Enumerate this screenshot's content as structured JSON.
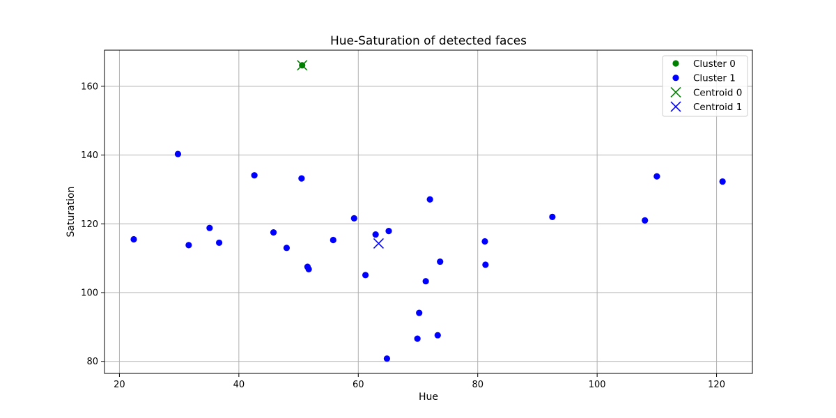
{
  "chart_data": {
    "type": "scatter",
    "title": "Hue-Saturation of detected faces",
    "xlabel": "Hue",
    "ylabel": "Saturation",
    "xlim": [
      17.5,
      126.0
    ],
    "ylim": [
      76.5,
      170.5
    ],
    "xticks": [
      20,
      40,
      60,
      80,
      100,
      120
    ],
    "yticks": [
      80,
      100,
      120,
      140,
      160
    ],
    "grid": true,
    "legend_position": "top-right",
    "series": [
      {
        "name": "Cluster 0",
        "marker": "circle",
        "color": "#008000",
        "points": [
          [
            50.6,
            166.1
          ]
        ]
      },
      {
        "name": "Cluster 1",
        "marker": "circle",
        "color": "#0000ff",
        "points": [
          [
            22.4,
            115.5
          ],
          [
            29.8,
            140.3
          ],
          [
            31.6,
            113.8
          ],
          [
            35.1,
            118.8
          ],
          [
            36.7,
            114.5
          ],
          [
            42.6,
            134.1
          ],
          [
            45.8,
            117.5
          ],
          [
            48.0,
            113.0
          ],
          [
            50.5,
            133.2
          ],
          [
            51.5,
            107.5
          ],
          [
            51.7,
            106.8
          ],
          [
            55.8,
            115.3
          ],
          [
            59.3,
            121.6
          ],
          [
            61.2,
            105.1
          ],
          [
            62.9,
            116.9
          ],
          [
            65.1,
            117.9
          ],
          [
            64.8,
            80.8
          ],
          [
            69.9,
            86.6
          ],
          [
            70.2,
            94.1
          ],
          [
            71.3,
            103.3
          ],
          [
            72.0,
            127.1
          ],
          [
            73.3,
            87.6
          ],
          [
            73.7,
            109.0
          ],
          [
            81.2,
            114.9
          ],
          [
            81.3,
            108.1
          ],
          [
            92.5,
            122.0
          ],
          [
            108.0,
            121.0
          ],
          [
            110.0,
            133.8
          ],
          [
            121.0,
            132.3
          ]
        ]
      },
      {
        "name": "Centroid 0",
        "marker": "x",
        "color": "#008000",
        "points": [
          [
            50.6,
            166.1
          ]
        ]
      },
      {
        "name": "Centroid 1",
        "marker": "x",
        "color": "#0000ff",
        "points": [
          [
            63.4,
            114.3
          ]
        ]
      }
    ]
  }
}
